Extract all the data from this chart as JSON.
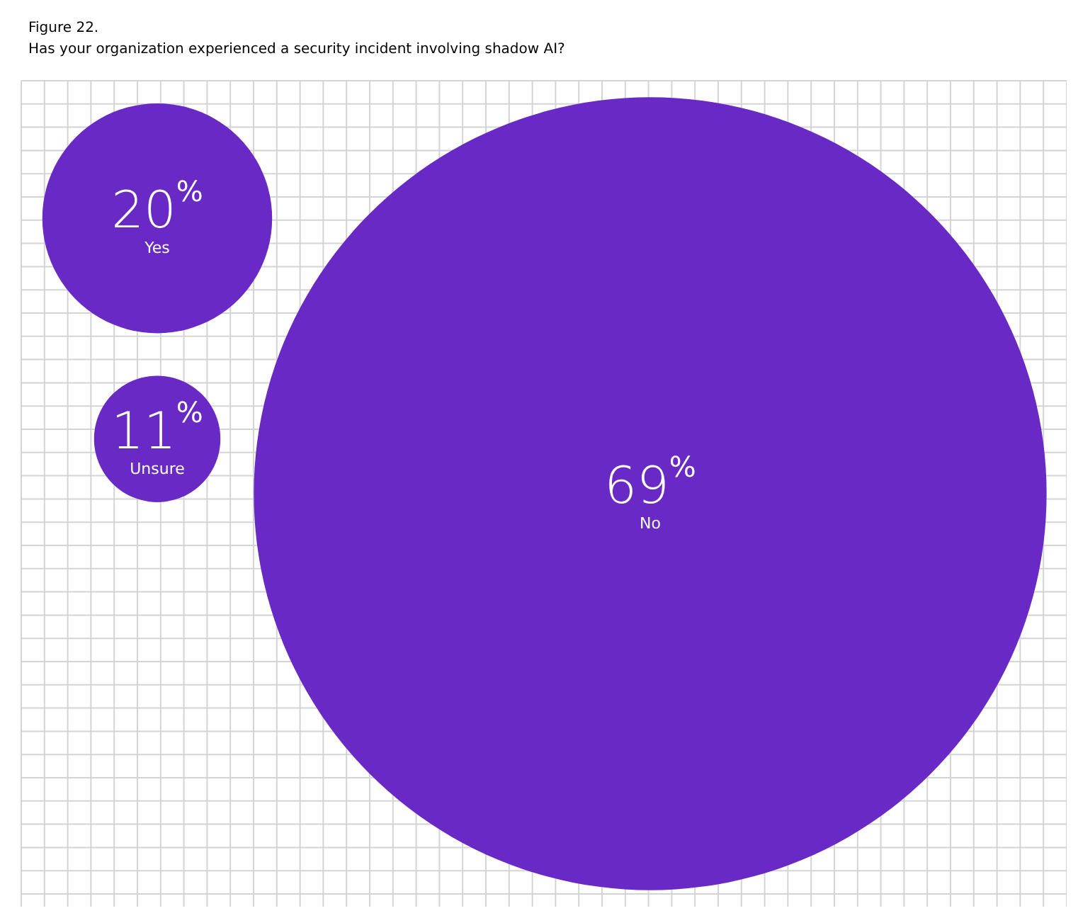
{
  "chart_data": {
    "type": "other",
    "title": "Figure 22.",
    "subtitle": "Has your organization experienced a security incident involving shadow AI?",
    "categories": [
      "Yes",
      "Unsure",
      "No"
    ],
    "values": [
      20,
      11,
      69
    ],
    "value_labels": [
      "20$^{%}$",
      "11$^{%}$",
      "69$^{%}$"
    ],
    "color": "#6929c4"
  }
}
